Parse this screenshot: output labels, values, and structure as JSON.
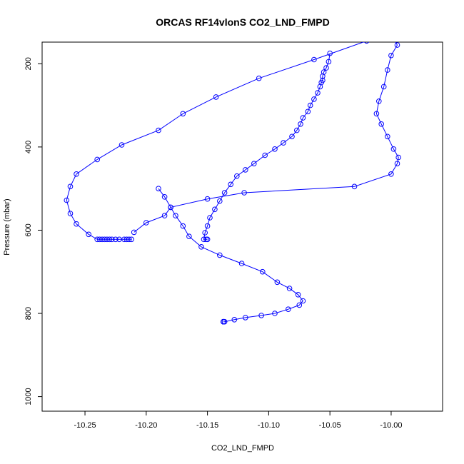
{
  "chart_data": {
    "type": "line",
    "title": "ORCAS RF14vlonS CO2_LND_FMPD",
    "xlabel": "CO2_LND_FMPD",
    "ylabel": "Pressure (mbar)",
    "xlim": [
      -10.285,
      -9.958
    ],
    "ylim": [
      1035,
      148
    ],
    "y_reversed": true,
    "x_ticks": [
      -10.25,
      -10.2,
      -10.15,
      -10.1,
      -10.05,
      -10.0
    ],
    "x_tick_labels": [
      "-10.25",
      "-10.20",
      "-10.15",
      "-10.10",
      "-10.05",
      "-10.00"
    ],
    "y_ticks": [
      200,
      400,
      600,
      800,
      1000
    ],
    "y_tick_labels": [
      "200",
      "400",
      "600",
      "800",
      "1000"
    ],
    "grid": false,
    "legend": "none",
    "color": "#0000ff",
    "marker": "open-circle",
    "series": [
      {
        "x": [
          -9.998,
          -9.995,
          -10.0,
          -10.003,
          -10.006,
          -10.01,
          -10.012,
          -10.008,
          -10.003,
          -9.998,
          -9.994,
          -9.995,
          -10.0,
          -10.03,
          -10.12,
          -10.15,
          -10.18,
          -10.185,
          -10.2,
          -10.21
        ],
        "y": [
          140,
          155,
          180,
          215,
          255,
          290,
          320,
          345,
          375,
          405,
          425,
          440,
          465,
          495,
          510,
          525,
          545,
          565,
          582,
          605
        ]
      },
      {
        "x": [
          -10.212,
          -10.214,
          -10.216,
          -10.218,
          -10.222,
          -10.225,
          -10.228,
          -10.23,
          -10.232,
          -10.234,
          -10.236,
          -10.238,
          -10.24,
          -10.247,
          -10.257,
          -10.262,
          -10.265,
          -10.262,
          -10.257,
          -10.24,
          -10.22,
          -10.19,
          -10.17,
          -10.143,
          -10.108,
          -10.063,
          -10.02,
          -9.995
        ],
        "y": [
          622,
          622,
          622,
          622,
          622,
          622,
          622,
          622,
          622,
          622,
          622,
          622,
          622,
          610,
          585,
          560,
          528,
          495,
          465,
          430,
          395,
          360,
          320,
          280,
          235,
          190,
          145,
          132
        ]
      },
      {
        "x": [
          -10.15,
          -10.151,
          -10.153,
          -10.152,
          -10.15,
          -10.148,
          -10.144,
          -10.14,
          -10.136,
          -10.131,
          -10.126,
          -10.119,
          -10.112,
          -10.103,
          -10.095,
          -10.088,
          -10.081,
          -10.077,
          -10.074,
          -10.072,
          -10.068,
          -10.066,
          -10.063,
          -10.06,
          -10.058,
          -10.057,
          -10.056,
          -10.056,
          -10.055,
          -10.053,
          -10.051,
          -10.05
        ],
        "y": [
          622,
          622,
          622,
          606,
          590,
          570,
          550,
          530,
          510,
          490,
          470,
          455,
          440,
          420,
          405,
          390,
          375,
          360,
          345,
          330,
          315,
          300,
          285,
          270,
          255,
          245,
          240,
          230,
          220,
          210,
          195,
          175
        ]
      },
      {
        "x": [
          -10.137,
          -10.137,
          -10.137,
          -10.137,
          -10.137,
          -10.137,
          -10.136,
          -10.128,
          -10.119,
          -10.106,
          -10.095,
          -10.084,
          -10.075,
          -10.072,
          -10.076,
          -10.083,
          -10.093,
          -10.105,
          -10.122,
          -10.14,
          -10.155,
          -10.165,
          -10.17,
          -10.176,
          -10.18,
          -10.185,
          -10.19
        ],
        "y": [
          820,
          820,
          820,
          820,
          820,
          820,
          820,
          815,
          810,
          805,
          800,
          790,
          780,
          770,
          755,
          740,
          725,
          700,
          680,
          660,
          640,
          615,
          590,
          565,
          545,
          520,
          500
        ]
      }
    ]
  }
}
